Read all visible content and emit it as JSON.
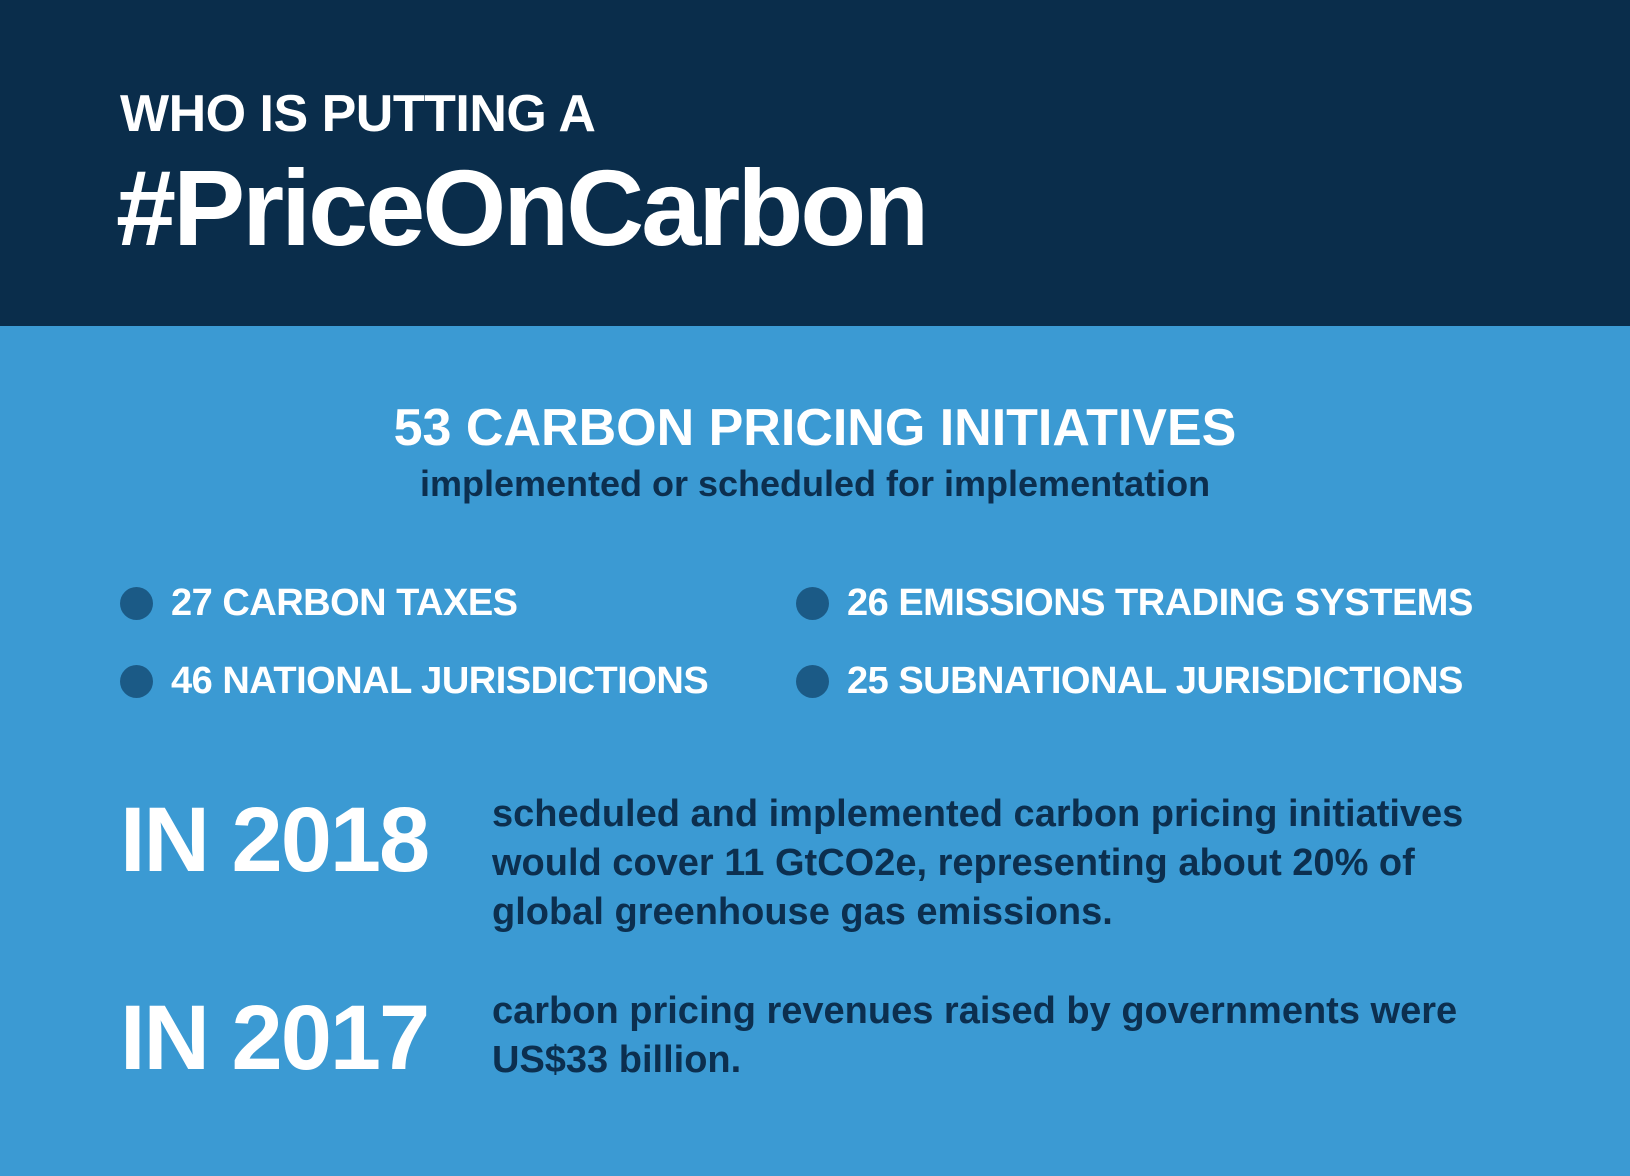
{
  "header": {
    "kicker": "WHO IS PUTTING A",
    "hashtag": "#PriceOnCarbon"
  },
  "summary": {
    "headline": "53 CARBON PRICING INITIATIVES",
    "subheadline": "implemented or scheduled for implementation"
  },
  "stats": {
    "carbon_taxes": "27 CARBON TAXES",
    "emissions_trading": "26 EMISSIONS TRADING SYSTEMS",
    "national": "46 NATIONAL JURISDICTIONS",
    "subnational": "25 SUBNATIONAL JURISDICTIONS"
  },
  "facts": [
    {
      "year": "IN 2018",
      "text": "scheduled and implemented carbon pricing initiatives would cover 11 GtCO2e, representing about 20% of global greenhouse gas emissions."
    },
    {
      "year": "IN 2017",
      "text": "carbon pricing revenues raised by governments were US$33 billion."
    }
  ],
  "colors": {
    "header_bg": "#0a2d4b",
    "body_bg": "#3b9ad3",
    "dark_text": "#0c2f4f",
    "bullet": "#1b5a86"
  }
}
